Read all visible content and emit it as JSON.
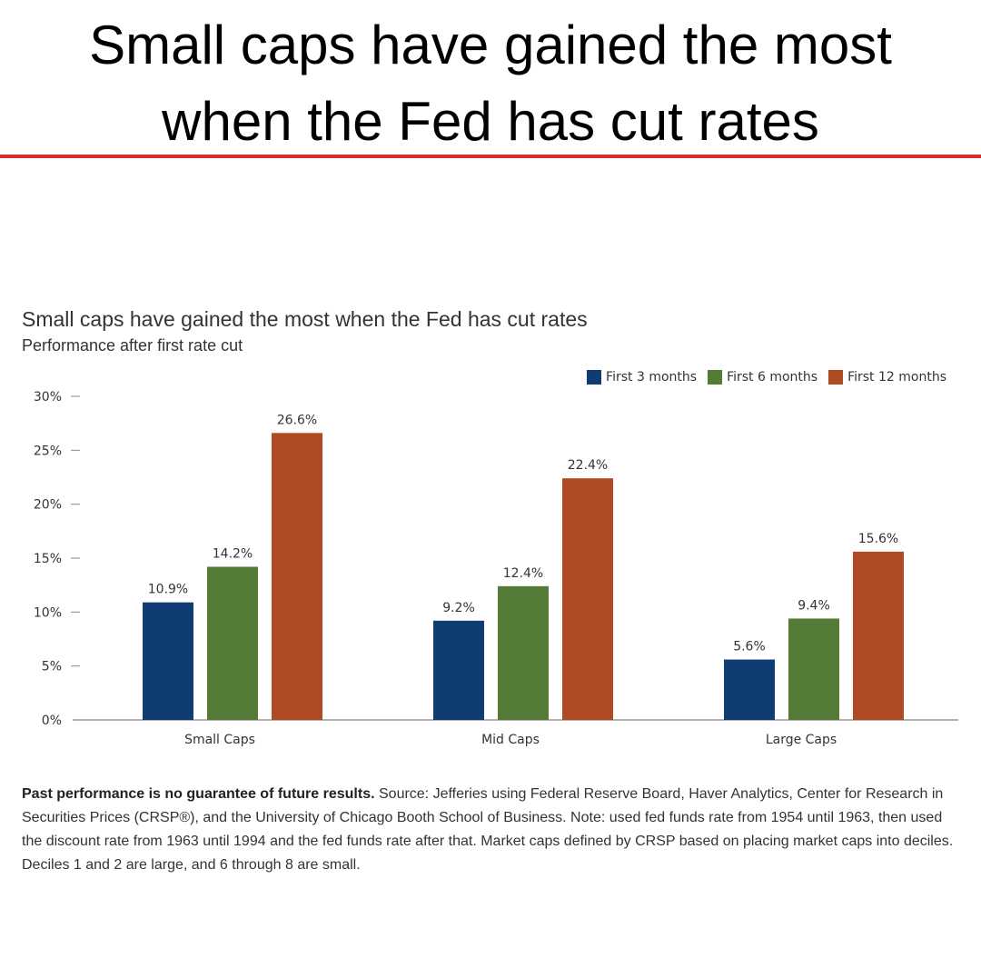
{
  "headline": {
    "line1": "Small caps have gained the most",
    "line2": "when the Fed has cut rates"
  },
  "chart_data": {
    "type": "bar",
    "title": "Small caps have gained the most when the Fed has cut rates",
    "subtitle": "Performance after first rate cut",
    "categories": [
      "Small Caps",
      "Mid Caps",
      "Large Caps"
    ],
    "series": [
      {
        "name": "First 3 months",
        "color": "#0f3d73",
        "values": [
          10.9,
          9.2,
          5.6
        ],
        "labels": [
          "10.9%",
          "9.2%",
          "5.6%"
        ]
      },
      {
        "name": "First 6 months",
        "color": "#547b37",
        "values": [
          14.2,
          12.4,
          9.4
        ],
        "labels": [
          "14.2%",
          "12.4%",
          "9.4%"
        ]
      },
      {
        "name": "First 12 months",
        "color": "#b04a23",
        "values": [
          26.6,
          22.4,
          15.6
        ],
        "labels": [
          "26.6%",
          "22.4%",
          "15.6%"
        ]
      }
    ],
    "yticks": [
      "0%",
      "5%",
      "10%",
      "15%",
      "20%",
      "25%",
      "30%"
    ],
    "ylim": [
      0,
      30
    ],
    "xlabel": "",
    "ylabel": "",
    "legend_position": "top-right",
    "grid": false
  },
  "footnote": {
    "bold": "Past performance is no guarantee of future results.",
    "text": " Source: Jefferies using Federal Reserve Board, Haver Analytics, Center for Research in Securities Prices (CRSP®), and the University of Chicago Booth School of Business. Note: used fed funds rate from 1954 until 1963, then used the discount rate from 1963 until 1994 and the fed funds rate after that. Market caps defined by CRSP based on placing market caps into deciles. Deciles 1 and 2 are large, and 6 through 8 are small."
  }
}
